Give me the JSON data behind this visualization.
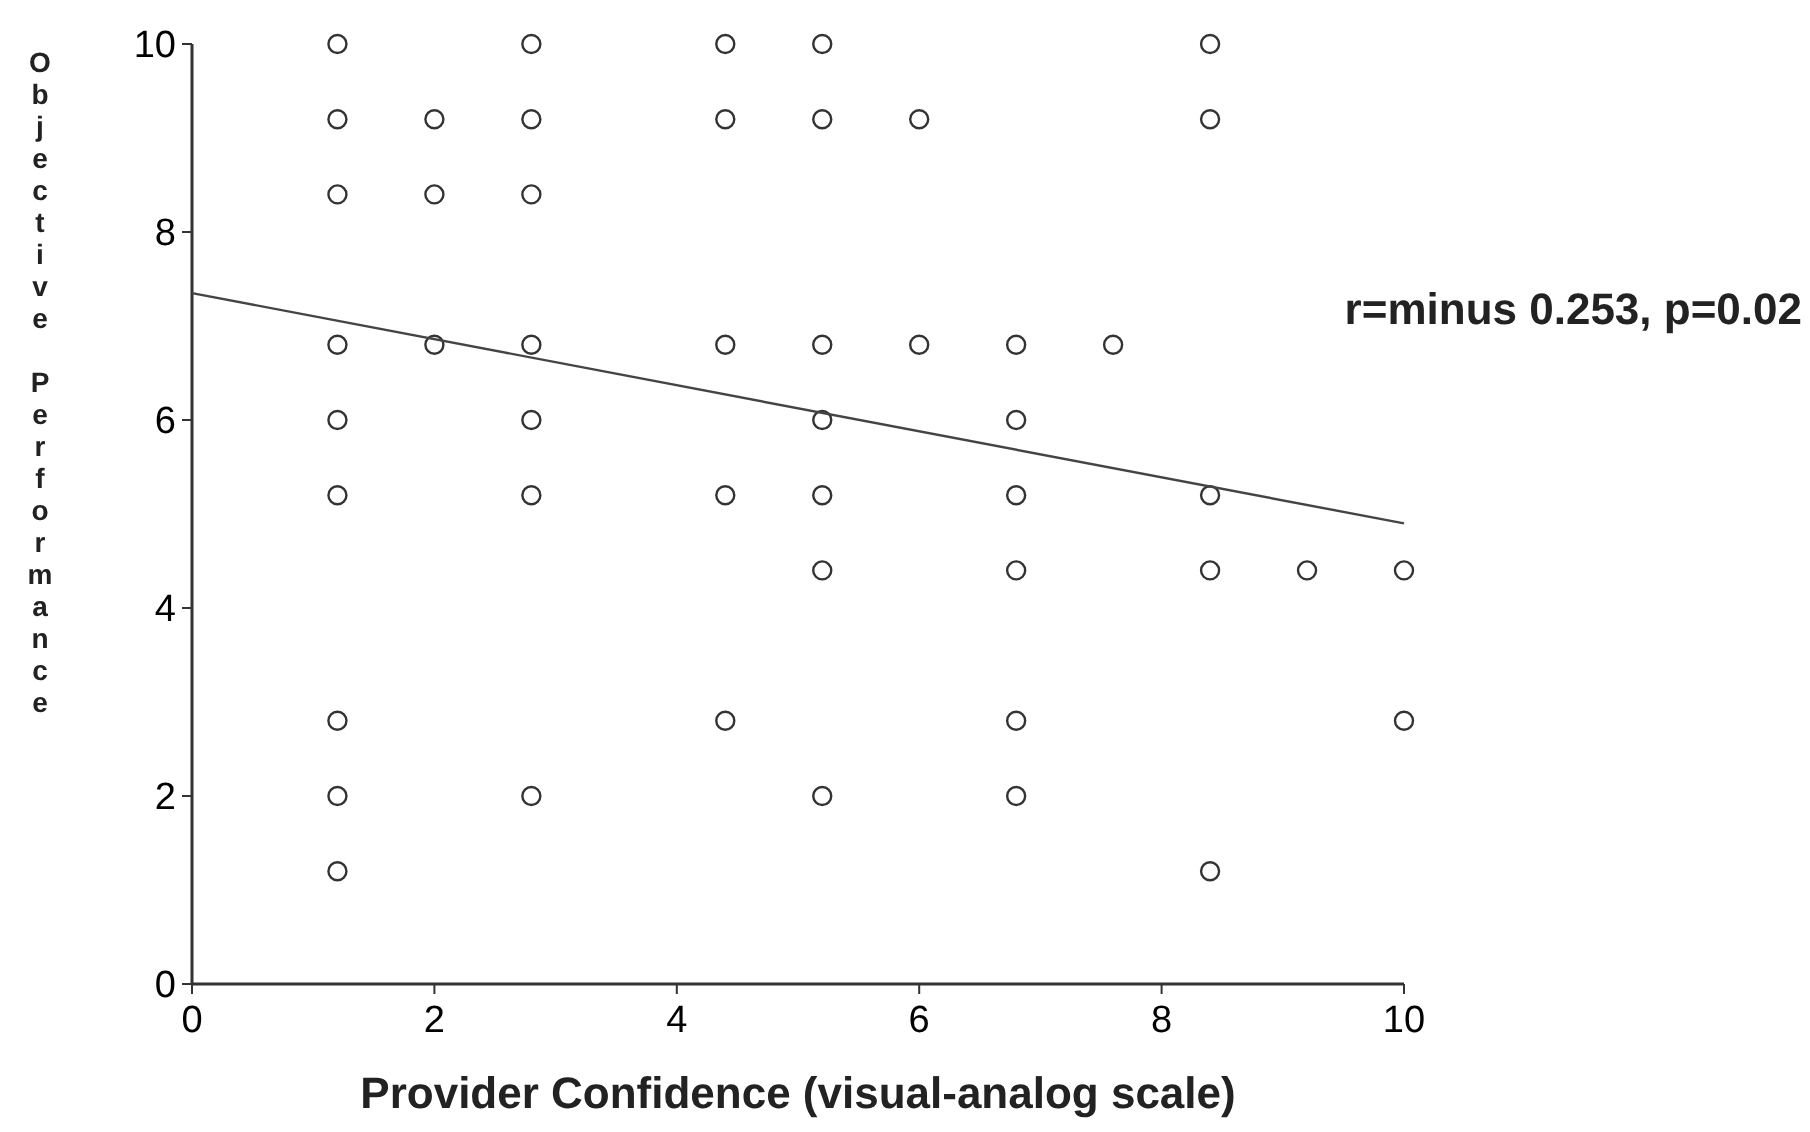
{
  "chart_data": {
    "type": "scatter",
    "xlabel": "Provider Confidence (visual-analog scale)",
    "ylabel": "Objective Performance",
    "xlim": [
      0,
      10
    ],
    "ylim": [
      0,
      10
    ],
    "xticks": [
      0,
      2,
      4,
      6,
      8,
      10
    ],
    "yticks": [
      0,
      2,
      4,
      6,
      8,
      10
    ],
    "grid": false,
    "annotations": [
      "r=minus 0.253, p=0.02"
    ],
    "series": [
      {
        "color": "#333333",
        "marker": "circle",
        "x": [
          1.2,
          1.2,
          1.2,
          1.2,
          1.2,
          1.2,
          1.2,
          1.2,
          1.2,
          2.0,
          2.0,
          2.0,
          2.8,
          2.8,
          2.8,
          2.8,
          2.8,
          2.8,
          2.8,
          4.4,
          4.4,
          4.4,
          4.4,
          4.4,
          5.2,
          5.2,
          5.2,
          5.2,
          5.2,
          5.2,
          5.2,
          6.0,
          6.0,
          6.8,
          6.8,
          6.8,
          6.8,
          6.8,
          6.8,
          7.6,
          8.4,
          8.4,
          8.4,
          8.4,
          8.4,
          9.2,
          10,
          10
        ],
        "values": [
          10,
          9.2,
          8.4,
          6.8,
          6,
          5.2,
          2.8,
          2,
          1.2,
          9.2,
          8.4,
          6.8,
          10,
          9.2,
          8.4,
          6.8,
          6,
          5.2,
          2,
          10,
          9.2,
          6.8,
          5.2,
          2.8,
          10,
          9.2,
          6.8,
          6,
          5.2,
          4.4,
          2,
          9.2,
          6.8,
          6.8,
          6,
          5.2,
          4.4,
          2.8,
          2,
          6.8,
          10,
          9.2,
          5.2,
          4.4,
          1.2,
          4.4,
          4.4,
          2.8
        ]
      },
      {
        "type": "line",
        "color": "#444444",
        "line_style": "solid",
        "marker": "none",
        "x": [
          0,
          10
        ],
        "values": [
          7.35,
          4.9
        ]
      }
    ]
  }
}
